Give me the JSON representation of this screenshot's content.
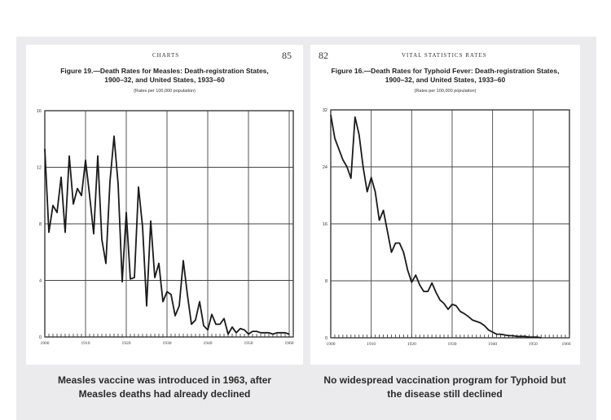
{
  "colors": {
    "panel": "#ebebed",
    "card": "#ffffff",
    "ink": "#1a1a1a"
  },
  "captions": {
    "left": [
      "Measles vaccine was introduced in 1963, after",
      "Measles deaths had already declined"
    ],
    "right": [
      "No widespread vaccination program for Typhoid but",
      "the disease still declined"
    ]
  },
  "chart_data": [
    {
      "type": "line",
      "page_header": "CHARTS",
      "page_number": "85",
      "title": [
        "Figure 19.—Death Rates for Measles: Death-registration States,",
        "1900–32, and United States, 1933–60"
      ],
      "subtitle": "(Rates per 100,000 population)",
      "xlabel": "",
      "ylabel": "",
      "xlim": [
        1900,
        1961
      ],
      "ylim": [
        0,
        16
      ],
      "xticks": [
        1900,
        1910,
        1920,
        1930,
        1940,
        1950,
        1960
      ],
      "yticks": [
        0,
        4,
        8,
        12,
        16
      ],
      "grid": true,
      "x": [
        1900,
        1901,
        1902,
        1903,
        1904,
        1905,
        1906,
        1907,
        1908,
        1909,
        1910,
        1911,
        1912,
        1913,
        1914,
        1915,
        1916,
        1917,
        1918,
        1919,
        1920,
        1921,
        1922,
        1923,
        1924,
        1925,
        1926,
        1927,
        1928,
        1929,
        1930,
        1931,
        1932,
        1933,
        1934,
        1935,
        1936,
        1937,
        1938,
        1939,
        1940,
        1941,
        1942,
        1943,
        1944,
        1945,
        1946,
        1947,
        1948,
        1949,
        1950,
        1951,
        1952,
        1953,
        1954,
        1955,
        1956,
        1957,
        1958,
        1959,
        1960
      ],
      "y": [
        13.3,
        7.4,
        9.3,
        8.8,
        11.3,
        7.4,
        12.8,
        9.4,
        10.5,
        10.0,
        12.5,
        10.0,
        7.3,
        12.8,
        6.9,
        5.2,
        11.0,
        14.2,
        10.8,
        3.9,
        8.8,
        4.1,
        4.2,
        10.6,
        7.8,
        2.2,
        8.2,
        4.2,
        5.2,
        2.5,
        3.2,
        3.0,
        1.5,
        2.2,
        5.4,
        3.0,
        0.9,
        1.2,
        2.5,
        0.8,
        0.5,
        1.6,
        0.9,
        0.9,
        1.3,
        0.2,
        0.7,
        0.3,
        0.6,
        0.5,
        0.2,
        0.4,
        0.4,
        0.3,
        0.3,
        0.3,
        0.2,
        0.3,
        0.3,
        0.3,
        0.2
      ]
    },
    {
      "type": "line",
      "page_header": "VITAL STATISTICS RATES",
      "page_number": "82",
      "title": [
        "Figure 16.—Death Rates for Typhoid Fever: Death-registration States,",
        "1900–32, and United States, 1933–60"
      ],
      "subtitle": "(Rates per 100,000 population)",
      "xlabel": "",
      "ylabel": "",
      "xlim": [
        1900,
        1959
      ],
      "ylim": [
        0,
        32
      ],
      "xticks": [
        1900,
        1910,
        1920,
        1930,
        1940,
        1950,
        1960
      ],
      "yticks": [
        0,
        8,
        16,
        24,
        32
      ],
      "grid": true,
      "x": [
        1900,
        1901,
        1902,
        1903,
        1904,
        1905,
        1906,
        1907,
        1908,
        1909,
        1910,
        1911,
        1912,
        1913,
        1914,
        1915,
        1916,
        1917,
        1918,
        1919,
        1920,
        1921,
        1922,
        1923,
        1924,
        1925,
        1926,
        1927,
        1928,
        1929,
        1930,
        1931,
        1932,
        1933,
        1934,
        1935,
        1936,
        1937,
        1938,
        1939,
        1940,
        1941,
        1942,
        1943,
        1944,
        1945,
        1946,
        1947,
        1948,
        1949,
        1950,
        1951,
        1952
      ],
      "y": [
        31.3,
        28,
        26.5,
        25,
        24,
        22.4,
        31,
        28.5,
        24,
        20.5,
        22.5,
        20.5,
        16.5,
        17.9,
        15,
        12,
        13.3,
        13.3,
        12,
        9.5,
        7.8,
        8.8,
        7.4,
        6.5,
        6.5,
        7.7,
        6.4,
        5.3,
        4.8,
        4.0,
        4.7,
        4.5,
        3.7,
        3.4,
        3.0,
        2.5,
        2.3,
        2.1,
        1.7,
        1.1,
        0.8,
        0.5,
        0.5,
        0.4,
        0.3,
        0.3,
        0.2,
        0.2,
        0.2,
        0.1,
        0.1,
        0.1,
        0.0
      ]
    }
  ]
}
